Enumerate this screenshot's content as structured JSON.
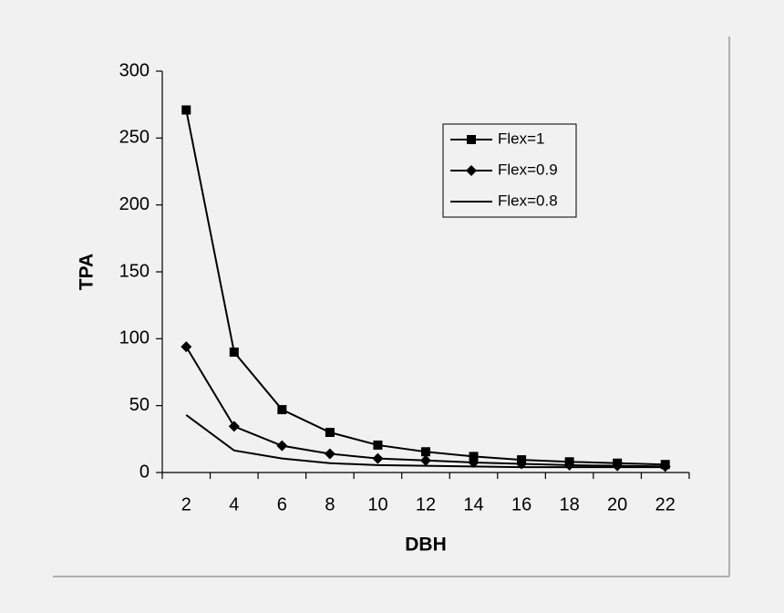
{
  "chart_data": {
    "type": "line",
    "x_label": "DBH",
    "y_label": "TPA",
    "categories": [
      "2",
      "4",
      "6",
      "8",
      "10",
      "12",
      "14",
      "16",
      "18",
      "20",
      "22"
    ],
    "series": [
      {
        "name": "Flex=1",
        "color": "#000000",
        "marker": "square",
        "values": [
          271,
          90,
          47,
          30,
          20.5,
          15.5,
          12,
          9.5,
          8,
          7,
          6
        ]
      },
      {
        "name": "Flex=0.9",
        "color": "#000000",
        "marker": "diamond",
        "values": [
          94,
          34.5,
          20,
          14,
          10.5,
          9,
          7.5,
          6.5,
          5.5,
          5,
          4.5
        ]
      },
      {
        "name": "Flex=0.8",
        "color": "#000000",
        "marker": "none",
        "values": [
          43,
          16.5,
          10.5,
          7,
          5.5,
          5,
          4.5,
          4,
          4,
          4,
          4
        ]
      }
    ],
    "ylim": [
      0,
      300
    ],
    "yticks": [
      0,
      50,
      100,
      150,
      200,
      250,
      300
    ],
    "grid": false,
    "legend": "upper right"
  }
}
